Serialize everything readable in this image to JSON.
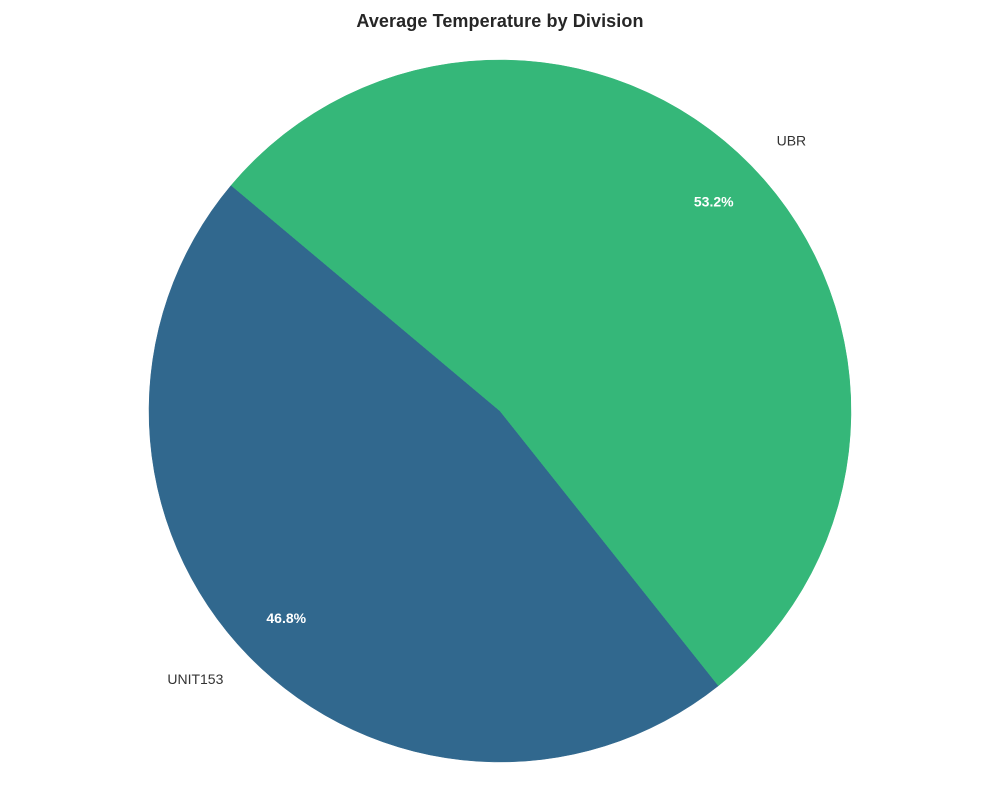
{
  "chart_data": {
    "type": "pie",
    "title": "Average Temperature by Division",
    "slices": [
      {
        "label": "UNIT153",
        "percent": 46.8,
        "pct_label": "46.8%",
        "color": "#31688e"
      },
      {
        "label": "UBR",
        "percent": 53.2,
        "pct_label": "53.2%",
        "color": "#35b779"
      }
    ]
  }
}
